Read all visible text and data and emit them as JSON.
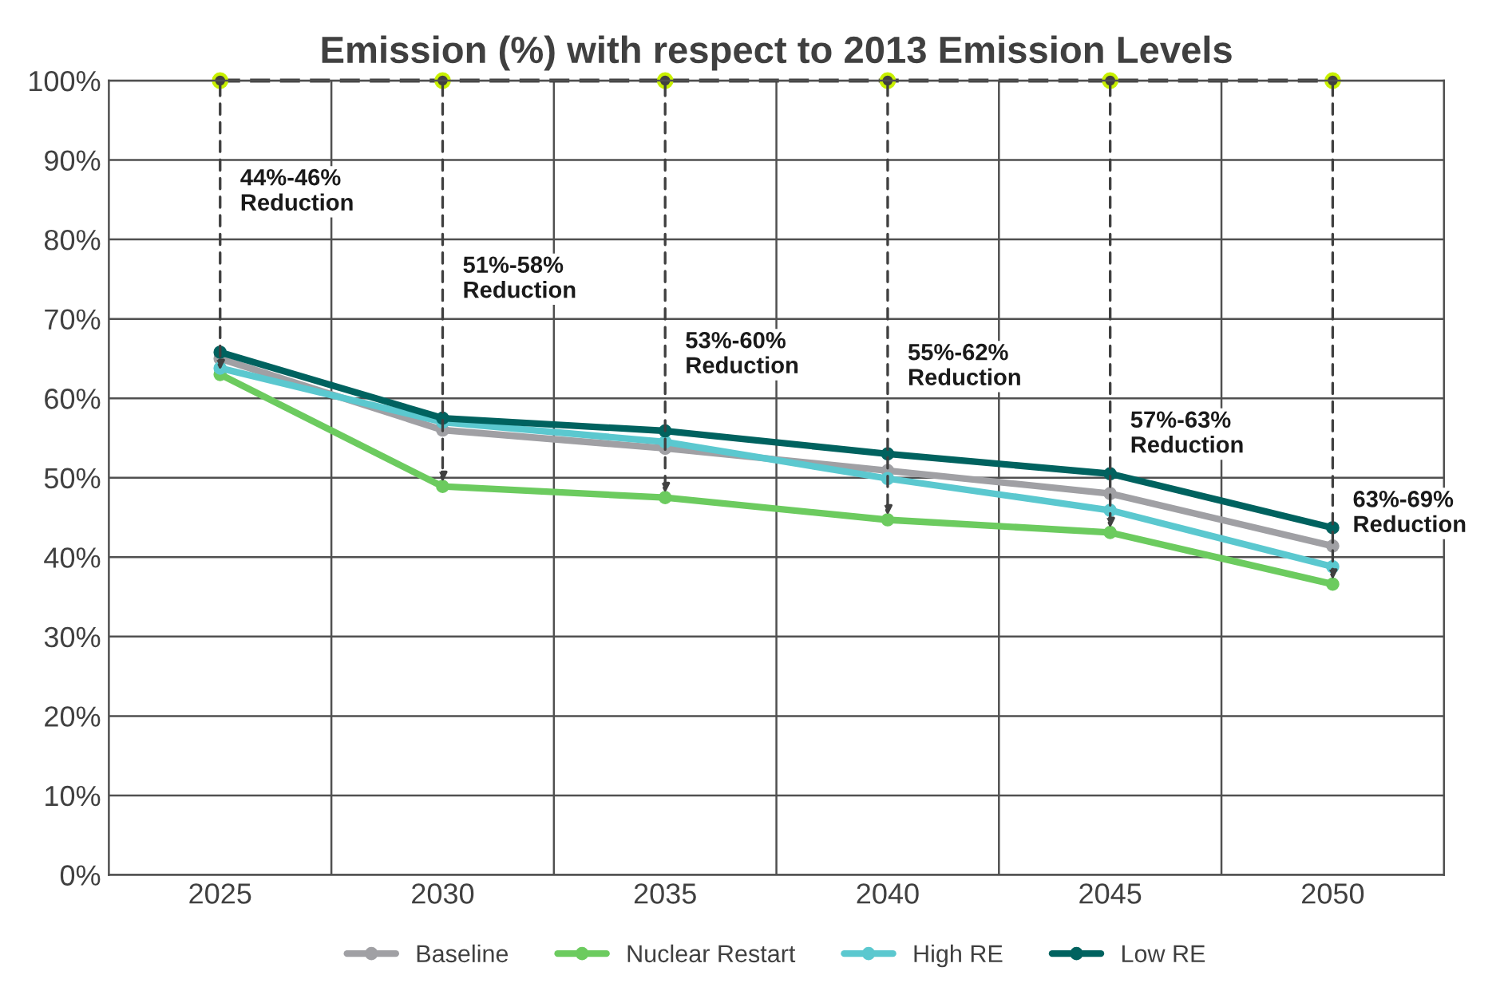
{
  "chart_data": {
    "type": "line",
    "title": "Emission (%) with respect to 2013 Emission Levels",
    "categories": [
      "2025",
      "2030",
      "2035",
      "2040",
      "2045",
      "2050"
    ],
    "series": [
      {
        "name": "Baseline",
        "color": "#a0a0a4",
        "values": [
          65,
          56,
          53.7,
          50.9,
          48,
          41.4
        ]
      },
      {
        "name": "Nuclear Restart",
        "color": "#6ccb5f",
        "values": [
          63,
          48.9,
          47.5,
          44.7,
          43.1,
          36.6
        ]
      },
      {
        "name": "High RE",
        "color": "#5bc8cf",
        "values": [
          63.8,
          57,
          54.5,
          49.9,
          45.9,
          38.8
        ]
      },
      {
        "name": "Low RE",
        "color": "#00625f",
        "values": [
          65.8,
          57.5,
          55.9,
          53,
          50.5,
          43.7
        ]
      },
      {
        "color": "#404040",
        "values": [
          100,
          100,
          100,
          100,
          100,
          100
        ],
        "line_style": "dashed"
      }
    ],
    "ylim": [
      0,
      100
    ],
    "yticks": [
      {
        "value": 0,
        "label": "0%"
      },
      {
        "value": 10,
        "label": "10%"
      },
      {
        "value": 20,
        "label": "20%"
      },
      {
        "value": 30,
        "label": "30%"
      },
      {
        "value": 40,
        "label": "40%"
      },
      {
        "value": 50,
        "label": "50%"
      },
      {
        "value": 60,
        "label": "60%"
      },
      {
        "value": 70,
        "label": "70%"
      },
      {
        "value": 80,
        "label": "80%"
      },
      {
        "value": 90,
        "label": "90%"
      },
      {
        "value": 100,
        "label": "100%"
      }
    ],
    "annotations": [
      "44%-46%\nReduction",
      "51%-58%\nReduction",
      "53%-60%\nReduction",
      "55%-62%\nReduction",
      "57%-63%\nReduction",
      "63%-69%\nReduction"
    ],
    "marker": "circle",
    "grid": true,
    "legend": "bottom"
  }
}
